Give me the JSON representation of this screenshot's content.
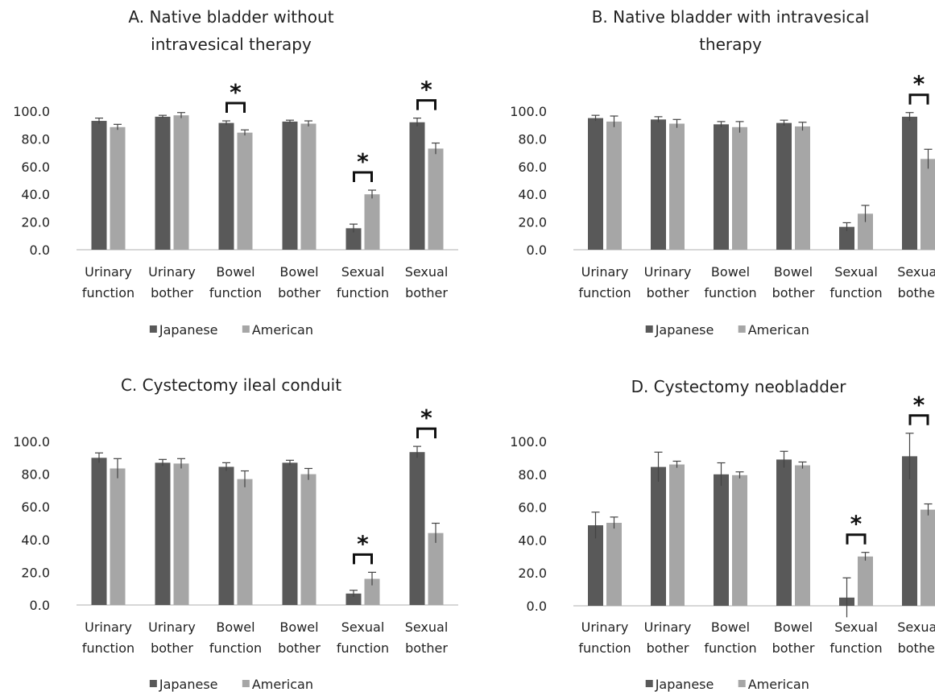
{
  "figure": {
    "categories": [
      [
        "Urinary",
        "function"
      ],
      [
        "Urinary",
        "bother"
      ],
      [
        "Bowel",
        "function"
      ],
      [
        "Bowel",
        "bother"
      ],
      [
        "Sexual",
        "function"
      ],
      [
        "Sexual",
        "bother"
      ]
    ],
    "y_ticks": [
      "0.0",
      "20.0",
      "40.0",
      "60.0",
      "80.0",
      "100.0"
    ],
    "legend": [
      {
        "label": "Japanese",
        "color": "#595959"
      },
      {
        "label": "American",
        "color": "#a6a6a6"
      }
    ],
    "significance_marker": "*"
  },
  "chart_data": [
    {
      "type": "bar",
      "title": [
        "A. Native bladder without",
        "intravesical therapy"
      ],
      "ylim": [
        0,
        100
      ],
      "series": [
        {
          "name": "Japanese",
          "values": [
            93,
            96,
            91.5,
            92.5,
            15.5,
            92
          ],
          "errors": [
            2,
            1,
            1.5,
            1,
            3,
            3
          ]
        },
        {
          "name": "American",
          "values": [
            88.5,
            97,
            84.5,
            91,
            40,
            73
          ],
          "errors": [
            2,
            2,
            2,
            2,
            3,
            4
          ]
        }
      ],
      "significant": [
        2,
        4,
        5
      ]
    },
    {
      "type": "bar",
      "title": [
        "B. Native bladder with intravesical",
        "therapy"
      ],
      "ylim": [
        0,
        100
      ],
      "series": [
        {
          "name": "Japanese",
          "values": [
            95,
            94,
            90.5,
            91.5,
            16.5,
            96
          ],
          "errors": [
            2,
            2,
            2,
            2,
            3,
            3
          ]
        },
        {
          "name": "American",
          "values": [
            92.5,
            91,
            88.5,
            89,
            26,
            65.5
          ],
          "errors": [
            4,
            3,
            4,
            3,
            6,
            7
          ]
        }
      ],
      "significant": [
        5
      ]
    },
    {
      "type": "bar",
      "title": [
        "C. Cystectomy ileal conduit"
      ],
      "ylim": [
        0,
        100
      ],
      "series": [
        {
          "name": "Japanese",
          "values": [
            90,
            87,
            84.5,
            87,
            7,
            93.5
          ],
          "errors": [
            3,
            2,
            2.5,
            1.5,
            2,
            3.5
          ]
        },
        {
          "name": "American",
          "values": [
            83.5,
            86.5,
            77,
            80,
            16,
            44
          ],
          "errors": [
            6,
            3,
            5,
            3.5,
            4,
            6
          ]
        }
      ],
      "significant": [
        4,
        5
      ]
    },
    {
      "type": "bar",
      "title": [
        "D. Cystectomy neobladder"
      ],
      "ylim": [
        0,
        100
      ],
      "series": [
        {
          "name": "Japanese",
          "values": [
            49,
            84.5,
            80,
            89,
            5,
            91
          ],
          "errors": [
            8,
            9,
            7,
            5,
            12,
            14
          ]
        },
        {
          "name": "American",
          "values": [
            50.5,
            86,
            79.5,
            85.5,
            30,
            58.5
          ],
          "errors": [
            3.5,
            2,
            2,
            2,
            2.5,
            3.5
          ]
        }
      ],
      "significant": [
        4,
        5
      ]
    }
  ]
}
